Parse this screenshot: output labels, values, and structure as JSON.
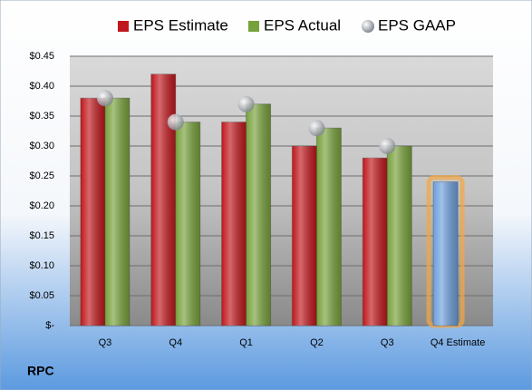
{
  "chart_data": {
    "type": "bar",
    "title": "RPC",
    "categories": [
      "Q3",
      "Q4",
      "Q1",
      "Q2",
      "Q3",
      "Q4 Estimate"
    ],
    "series": [
      {
        "name": "EPS Estimate",
        "color": "#c0171c",
        "values": [
          0.38,
          0.42,
          0.34,
          0.3,
          0.28,
          0.24
        ]
      },
      {
        "name": "EPS Actual",
        "color": "#77a13a",
        "values": [
          0.38,
          0.34,
          0.37,
          0.33,
          0.3,
          null
        ]
      },
      {
        "name": "EPS GAAP",
        "color": "#b8bcc4",
        "marker": "circle",
        "values": [
          0.38,
          0.34,
          0.37,
          0.33,
          0.3,
          null
        ]
      }
    ],
    "highlight": {
      "index": 5,
      "color": "#6d9fdc",
      "glow": "#f5a742"
    },
    "ylim": [
      0,
      0.45
    ],
    "yticks": [
      {
        "value": 0,
        "label": "$-"
      },
      {
        "value": 0.05,
        "label": "$0.05"
      },
      {
        "value": 0.1,
        "label": "$0.10"
      },
      {
        "value": 0.15,
        "label": "$0.15"
      },
      {
        "value": 0.2,
        "label": "$0.20"
      },
      {
        "value": 0.25,
        "label": "$0.25"
      },
      {
        "value": 0.3,
        "label": "$0.30"
      },
      {
        "value": 0.35,
        "label": "$0.35"
      },
      {
        "value": 0.4,
        "label": "$0.40"
      },
      {
        "value": 0.45,
        "label": "$0.45"
      }
    ],
    "grid": true
  }
}
